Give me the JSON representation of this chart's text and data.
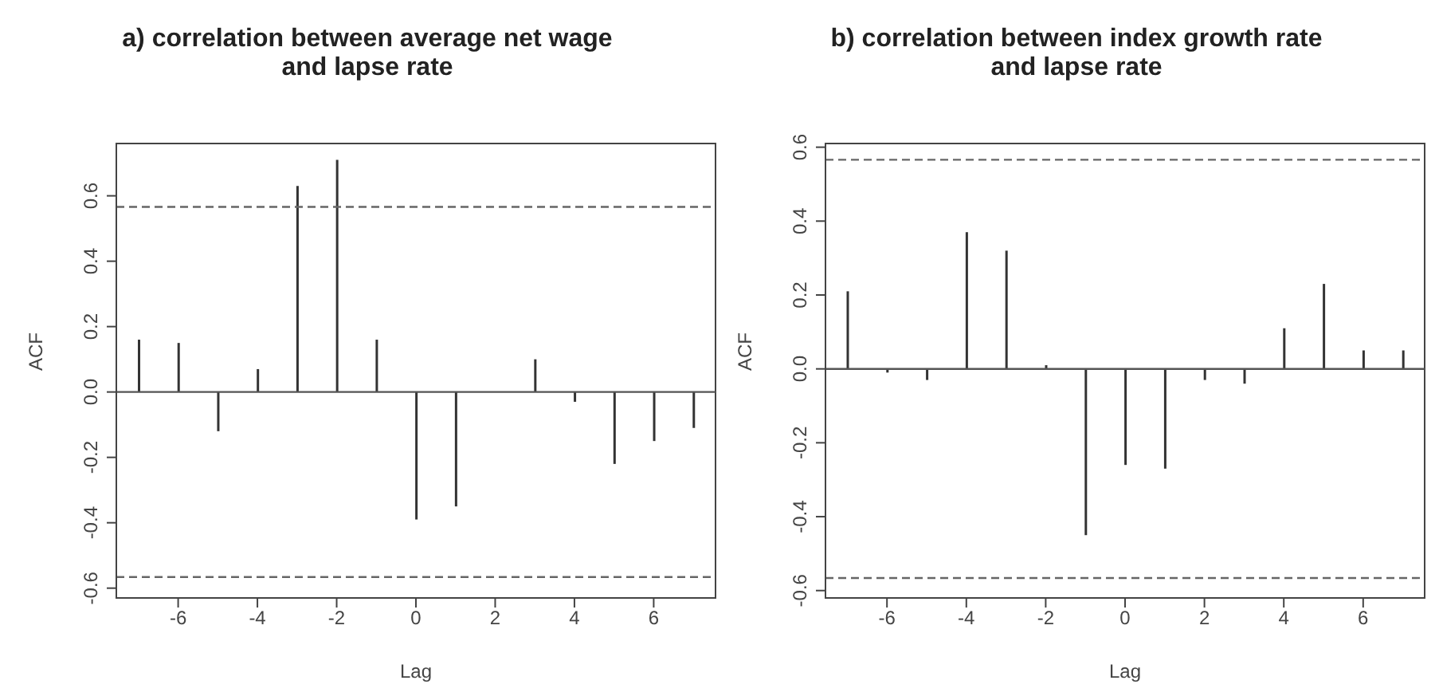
{
  "chart_data": [
    {
      "type": "bar",
      "title": "a)  correlation between average net wage and lapse rate",
      "xlabel": "Lag",
      "ylabel": "ACF",
      "x": [
        -7,
        -6,
        -5,
        -4,
        -3,
        -2,
        -1,
        0,
        1,
        2,
        3,
        4,
        5,
        6,
        7
      ],
      "series": [
        {
          "color": "#333333",
          "values": [
            0.16,
            0.15,
            -0.12,
            0.07,
            0.63,
            0.71,
            0.16,
            -0.39,
            -0.35,
            0.0,
            0.1,
            -0.03,
            -0.22,
            -0.15,
            -0.11
          ]
        }
      ],
      "xlim": [
        -7.56,
        7.56
      ],
      "xticks": [
        -6,
        -4,
        -2,
        0,
        2,
        4,
        6
      ],
      "ylim": [
        -0.63,
        0.76
      ],
      "yticks": [
        -0.6,
        -0.4,
        -0.2,
        {
          "value": 0,
          "label": "0.0"
        },
        0.2,
        0.4,
        0.6
      ],
      "ref_lines": [
        {
          "axis": "y",
          "value": 0,
          "color": "#555555",
          "line_style": "solid"
        },
        {
          "axis": "y",
          "value": 0.566,
          "color": "#666666",
          "line_style": "dashed"
        },
        {
          "axis": "y",
          "value": -0.566,
          "color": "#666666",
          "line_style": "dashed"
        }
      ],
      "grid": false,
      "legend": false
    },
    {
      "type": "bar",
      "title": "b) correlation between index growth rate and lapse rate",
      "xlabel": "Lag",
      "ylabel": "ACF",
      "x": [
        -7,
        -6,
        -5,
        -4,
        -3,
        -2,
        -1,
        0,
        1,
        2,
        3,
        4,
        5,
        6,
        7
      ],
      "series": [
        {
          "color": "#333333",
          "values": [
            0.21,
            -0.01,
            -0.03,
            0.37,
            0.32,
            0.01,
            -0.45,
            -0.26,
            -0.27,
            -0.03,
            -0.04,
            0.11,
            0.23,
            0.05,
            0.05
          ]
        }
      ],
      "xlim": [
        -7.55,
        7.55
      ],
      "xticks": [
        -6,
        -4,
        -2,
        0,
        2,
        4,
        6
      ],
      "ylim": [
        -0.62,
        0.61
      ],
      "yticks": [
        -0.6,
        -0.4,
        -0.2,
        {
          "value": 0,
          "label": "0.0"
        },
        0.2,
        0.4,
        0.6
      ],
      "ref_lines": [
        {
          "axis": "y",
          "value": 0,
          "color": "#555555",
          "line_style": "solid"
        },
        {
          "axis": "y",
          "value": 0.566,
          "color": "#666666",
          "line_style": "dashed"
        },
        {
          "axis": "y",
          "value": -0.566,
          "color": "#666666",
          "line_style": "dashed"
        }
      ],
      "grid": false,
      "legend": false
    }
  ]
}
